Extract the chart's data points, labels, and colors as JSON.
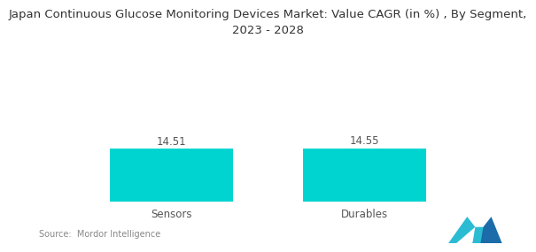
{
  "title": "Japan Continuous Glucose Monitoring Devices Market: Value CAGR (in %) , By Segment,\n2023 - 2028",
  "categories": [
    "Sensors",
    "Durables"
  ],
  "values": [
    14.51,
    14.55
  ],
  "bar_color": "#00D4D0",
  "bar_width": 0.28,
  "value_labels": [
    "14.51",
    "14.55"
  ],
  "source_text": "Source:  Mordor Intelligence",
  "background_color": "#ffffff",
  "title_fontsize": 9.5,
  "label_fontsize": 8.5,
  "value_fontsize": 8.5,
  "source_fontsize": 7.0,
  "ylim": [
    0,
    35
  ],
  "positions": [
    0.28,
    0.72
  ]
}
